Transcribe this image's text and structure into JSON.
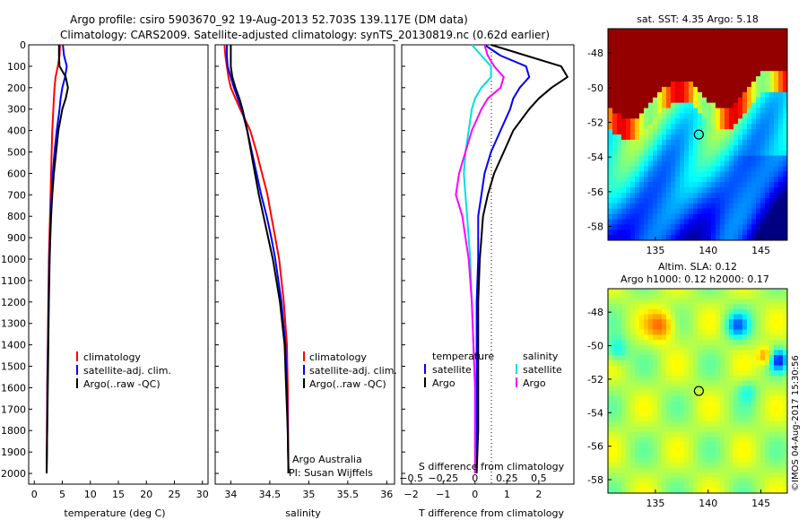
{
  "header": {
    "title_line1": "Argo profile: csiro 5903670_92 19-Aug-2013 52.703S 139.117E (DM data)",
    "title_line2": "Climatology: CARS2009. Satellite-adjusted climatology: synTS_20130819.nc (0.62d earlier)"
  },
  "watermark": "©IMOS 04-Aug-2017 15:30:56",
  "colors": {
    "climatology": "#ff0000",
    "satellite": "#0000ff",
    "argo": "#000000",
    "satellite_salinity": "#00e0e0",
    "argo_salinity": "#ff00ff"
  },
  "chart_data": [
    {
      "type": "line",
      "id": "temperature",
      "xlabel": "temperature (deg C)",
      "ylabel": "",
      "xlim": [
        -1,
        31
      ],
      "ylim": [
        2050,
        0
      ],
      "x_ticks": [
        0,
        5,
        10,
        15,
        20,
        25,
        30
      ],
      "y_ticks": [
        0,
        100,
        200,
        300,
        400,
        500,
        600,
        700,
        800,
        900,
        1000,
        1100,
        1200,
        1300,
        1400,
        1500,
        1600,
        1700,
        1800,
        1900,
        2000
      ],
      "depth": [
        0,
        50,
        100,
        150,
        200,
        250,
        300,
        400,
        500,
        600,
        700,
        800,
        900,
        1000,
        1200,
        1400,
        1600,
        1800,
        2000
      ],
      "series": [
        {
          "name": "climatology",
          "color": "#ff0000",
          "values": [
            4.6,
            4.5,
            4.2,
            3.8,
            3.6,
            3.5,
            3.4,
            3.2,
            3.1,
            3.0,
            2.9,
            2.8,
            2.7,
            2.6,
            2.5,
            2.4,
            2.3,
            2.25,
            2.2
          ]
        },
        {
          "name": "satellite-adj. clim.",
          "color": "#0000ff",
          "values": [
            5.1,
            5.3,
            5.8,
            5.5,
            5.0,
            4.7,
            4.5,
            4.0,
            3.6,
            3.3,
            3.1,
            2.9,
            2.8,
            2.7,
            2.55,
            2.45,
            2.35,
            2.3,
            2.2
          ]
        },
        {
          "name": "Argo(..raw -QC)",
          "color": "#000000",
          "values": [
            4.4,
            4.4,
            4.5,
            5.6,
            6.0,
            5.6,
            5.0,
            4.3,
            3.9,
            3.5,
            3.2,
            3.0,
            2.85,
            2.75,
            2.6,
            2.5,
            2.4,
            2.3,
            2.2
          ]
        }
      ]
    },
    {
      "type": "line",
      "id": "salinity",
      "xlabel": "salinity",
      "xlim": [
        33.8,
        36.1
      ],
      "ylim": [
        2050,
        0
      ],
      "x_ticks": [
        34,
        34.5,
        35,
        35.5,
        36
      ],
      "depth": [
        0,
        50,
        100,
        150,
        200,
        250,
        300,
        400,
        500,
        600,
        700,
        800,
        900,
        1000,
        1200,
        1400,
        1600,
        1800,
        2000
      ],
      "series": [
        {
          "name": "climatology",
          "color": "#ff0000",
          "values": [
            33.92,
            33.93,
            33.95,
            33.97,
            34.0,
            34.06,
            34.12,
            34.25,
            34.33,
            34.4,
            34.47,
            34.52,
            34.57,
            34.62,
            34.68,
            34.72,
            34.73,
            34.735,
            34.74
          ]
        },
        {
          "name": "satellite-adj. clim.",
          "color": "#0000ff",
          "values": [
            33.95,
            33.95,
            33.96,
            34.0,
            34.04,
            34.09,
            34.14,
            34.21,
            34.27,
            34.33,
            34.39,
            34.46,
            34.52,
            34.57,
            34.65,
            34.7,
            34.72,
            34.73,
            34.74
          ]
        },
        {
          "name": "Argo(..raw -QC)",
          "color": "#000000",
          "values": [
            34.0,
            34.0,
            34.0,
            34.02,
            34.06,
            34.11,
            34.15,
            34.21,
            34.26,
            34.31,
            34.36,
            34.42,
            34.48,
            34.54,
            34.63,
            34.69,
            34.71,
            34.73,
            34.74
          ]
        }
      ],
      "annotations": [
        "Argo Australia",
        "PI: Susan Wijffels"
      ]
    },
    {
      "type": "line",
      "id": "difference",
      "xlabel": "T difference from climatology",
      "x2label": "S difference from climatology",
      "xlim": [
        -2.3,
        3.1
      ],
      "x_ticks": [
        -2,
        -1,
        0,
        1,
        2
      ],
      "x_tick_labels": [
        "−2",
        "−1",
        "0",
        "1",
        "2"
      ],
      "x2_ticks": [
        -2,
        -1,
        0,
        1,
        2
      ],
      "x2_tick_labels": [
        "−0.5",
        "−0.25",
        "0",
        "0.25",
        "0.5"
      ],
      "ylim": [
        2050,
        0
      ],
      "depth": [
        0,
        50,
        100,
        150,
        200,
        250,
        300,
        400,
        500,
        600,
        700,
        800,
        900,
        1000,
        1200,
        1400,
        1600,
        1800,
        2000
      ],
      "series": [
        {
          "name": "temperature satellite",
          "color": "#0000ff",
          "values": [
            0.3,
            0.8,
            1.6,
            1.7,
            1.4,
            1.2,
            1.1,
            0.8,
            0.5,
            0.3,
            0.2,
            0.1,
            0.1,
            0.1,
            0.05,
            0.05,
            0.05,
            0.05,
            0.0
          ]
        },
        {
          "name": "temperature Argo",
          "color": "#000000",
          "values": [
            0.5,
            1.6,
            2.7,
            2.9,
            2.4,
            2.0,
            1.7,
            1.2,
            0.9,
            0.6,
            0.4,
            0.25,
            0.2,
            0.15,
            0.1,
            0.1,
            0.1,
            0.1,
            0.05
          ]
        },
        {
          "name": "salinity satellite",
          "color": "#00e0e0",
          "values": [
            -0.1,
            0.2,
            0.5,
            0.5,
            0.2,
            0.0,
            -0.1,
            -0.2,
            -0.3,
            -0.35,
            -0.3,
            -0.25,
            -0.2,
            -0.15,
            -0.1,
            -0.05,
            0.0,
            0.0,
            0.0
          ]
        },
        {
          "name": "salinity Argo",
          "color": "#ff00ff",
          "values": [
            0.3,
            0.4,
            0.6,
            0.9,
            0.8,
            0.4,
            0.2,
            -0.1,
            -0.3,
            -0.5,
            -0.6,
            -0.4,
            -0.3,
            -0.2,
            -0.1,
            -0.05,
            0.0,
            0.0,
            0.0
          ]
        }
      ],
      "legend": {
        "temperature_title": "temperature",
        "salinity_title": "salinity",
        "satellite": "satellite",
        "argo": "Argo"
      }
    },
    {
      "type": "heatmap",
      "id": "sst-map",
      "title": "sat. SST: 4.35 Argo: 5.18",
      "xlim": [
        130.5,
        147.5
      ],
      "ylim": [
        -58.8,
        -46.6
      ],
      "x_ticks": [
        135,
        140,
        145
      ],
      "y_ticks": [
        -48,
        -50,
        -52,
        -54,
        -56,
        -58
      ],
      "marker": {
        "lon": 139.117,
        "lat": -52.703
      }
    },
    {
      "type": "heatmap",
      "id": "sla-map",
      "title": "Altim. SLA: 0.12",
      "subtitle": "Argo h1000: 0.12 h2000: 0.17",
      "xlim": [
        130.5,
        147.5
      ],
      "ylim": [
        -58.8,
        -46.6
      ],
      "x_ticks": [
        135,
        140,
        145
      ],
      "y_ticks": [
        -48,
        -50,
        -52,
        -54,
        -56,
        -58
      ],
      "marker": {
        "lon": 139.117,
        "lat": -52.703
      }
    }
  ]
}
